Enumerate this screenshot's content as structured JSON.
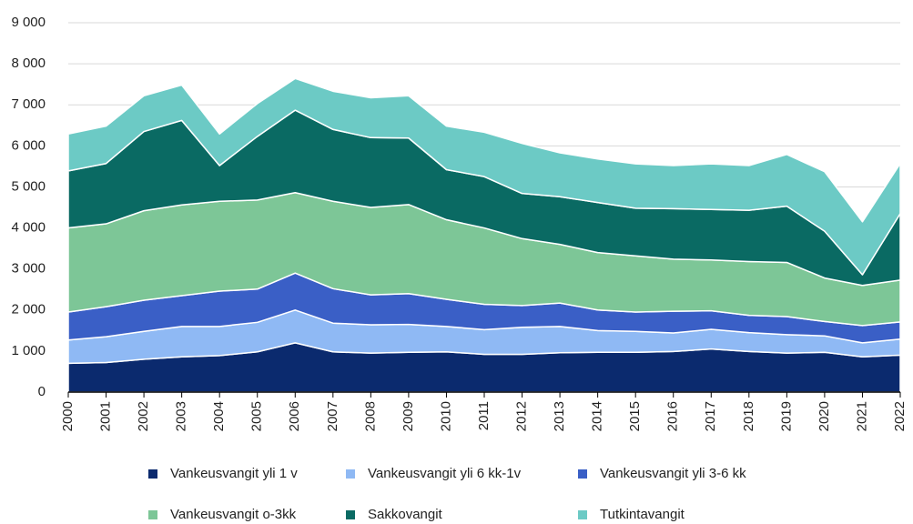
{
  "chart_data": {
    "type": "stacked_area",
    "x": [
      2000,
      2001,
      2002,
      2003,
      2004,
      2005,
      2006,
      2007,
      2008,
      2009,
      2010,
      2011,
      2012,
      2013,
      2014,
      2015,
      2016,
      2017,
      2018,
      2019,
      2020,
      2021,
      2022
    ],
    "xlim": [
      2000,
      2022
    ],
    "ylim": [
      0,
      9000
    ],
    "yticks": [
      0,
      {
        "value": 1000,
        "label": "1 000"
      },
      {
        "value": 2000,
        "label": "2 000"
      },
      {
        "value": 3000,
        "label": "3 000"
      },
      {
        "value": 4000,
        "label": "4 000"
      },
      {
        "value": 5000,
        "label": "5 000"
      },
      {
        "value": 6000,
        "label": "6 000"
      },
      {
        "value": 7000,
        "label": "7 000"
      },
      {
        "value": 8000,
        "label": "8 000"
      },
      {
        "value": 9000,
        "label": "9 000"
      }
    ],
    "grid": true,
    "legend": "bottom",
    "series": [
      {
        "name": "Vankeusvangit yli 1 v",
        "color": "#0b2a6e",
        "values": [
          700,
          720,
          800,
          860,
          890,
          980,
          1200,
          980,
          950,
          970,
          980,
          920,
          920,
          960,
          970,
          970,
          990,
          1050,
          990,
          950,
          970,
          860,
          900
        ]
      },
      {
        "name": "Vankeusvangit yli 6 kk-1v",
        "color": "#8fb9f4",
        "values": [
          570,
          630,
          680,
          740,
          710,
          720,
          800,
          700,
          690,
          680,
          620,
          600,
          660,
          640,
          530,
          510,
          450,
          480,
          460,
          450,
          400,
          340,
          390
        ]
      },
      {
        "name": "Vankeusvangit yli 3-6 kk",
        "color": "#3a5fc6",
        "values": [
          680,
          730,
          760,
          750,
          860,
          810,
          900,
          840,
          730,
          750,
          660,
          620,
          530,
          570,
          500,
          470,
          530,
          450,
          420,
          440,
          350,
          420,
          420
        ]
      },
      {
        "name": "Vankeusvangit o-3kk",
        "color": "#7dc697",
        "values": [
          2050,
          2020,
          2180,
          2210,
          2190,
          2170,
          1960,
          2130,
          2130,
          2170,
          1940,
          1860,
          1630,
          1430,
          1400,
          1370,
          1270,
          1240,
          1310,
          1320,
          1060,
          980,
          1020
        ]
      },
      {
        "name": "Sakkovangit",
        "color": "#0a6a63",
        "values": [
          1390,
          1470,
          1930,
          2060,
          870,
          1550,
          2010,
          1750,
          1700,
          1620,
          1220,
          1250,
          1100,
          1160,
          1220,
          1160,
          1230,
          1230,
          1250,
          1370,
          1140,
          260,
          1620
        ]
      },
      {
        "name": "Tutkintavangit",
        "color": "#6ccac5",
        "values": [
          900,
          910,
          870,
          860,
          770,
          800,
          770,
          930,
          970,
          1030,
          1060,
          1080,
          1220,
          1070,
          1060,
          1080,
          1050,
          1110,
          1090,
          1260,
          1450,
          1290,
          1220
        ]
      }
    ]
  }
}
